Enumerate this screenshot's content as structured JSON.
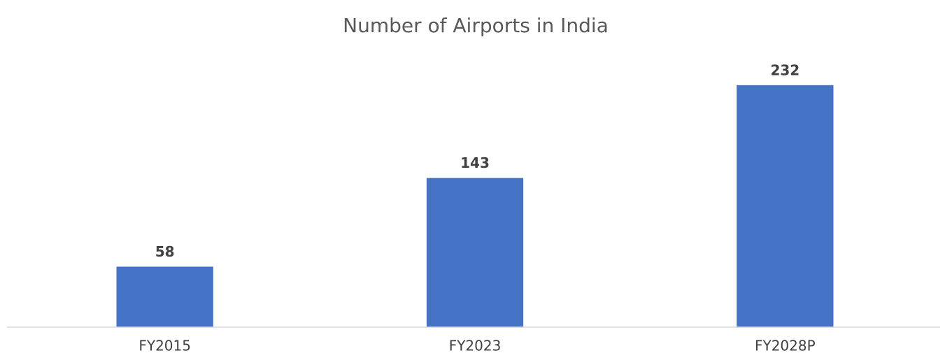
{
  "chart_data": {
    "type": "bar",
    "title": "Number of Airports in India",
    "categories": [
      "FY2015",
      "FY2023",
      "FY2028P"
    ],
    "values": [
      58,
      143,
      232
    ],
    "color": "#4472c4",
    "ylim": [
      0,
      250
    ],
    "grid": false
  }
}
